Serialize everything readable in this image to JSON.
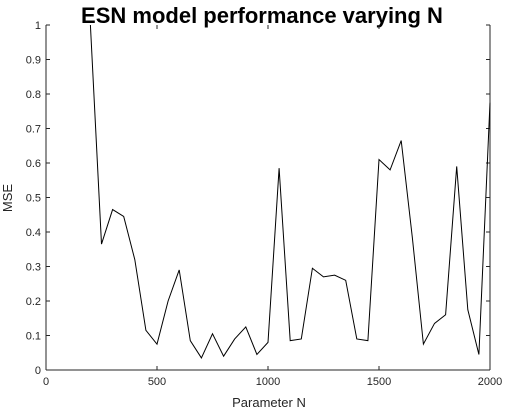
{
  "chart_data": {
    "type": "line",
    "title": "ESN model performance varying  N",
    "xlabel": "Parameter  N",
    "ylabel": "MSE",
    "xlim": [
      0,
      2000
    ],
    "ylim": [
      0,
      1
    ],
    "xticks": [
      0,
      500,
      1000,
      1500,
      2000
    ],
    "xtick_labels": [
      "0",
      "500",
      "1000",
      "1500",
      "2000"
    ],
    "yticks": [
      0,
      0.1,
      0.2,
      0.3,
      0.4,
      0.5,
      0.6,
      0.7,
      0.8,
      0.9,
      1
    ],
    "ytick_labels": [
      "0",
      "0.1",
      "0.2",
      "0.3",
      "0.4",
      "0.5",
      "0.6",
      "0.7",
      "0.8",
      "0.9",
      "1"
    ],
    "grid": false,
    "line_color": "#000000",
    "series": [
      {
        "x": [
          200,
          250,
          300,
          350,
          400,
          450,
          500,
          550,
          600,
          650,
          700,
          750,
          800,
          850,
          900,
          950,
          1000,
          1050,
          1100,
          1150,
          1200,
          1250,
          1300,
          1350,
          1400,
          1450,
          1500,
          1550,
          1600,
          1650,
          1700,
          1750,
          1800,
          1850,
          1900,
          1950,
          2000
        ],
        "values": [
          1.0,
          0.365,
          0.465,
          0.445,
          0.32,
          0.115,
          0.075,
          0.2,
          0.29,
          0.085,
          0.035,
          0.105,
          0.04,
          0.09,
          0.125,
          0.045,
          0.08,
          0.585,
          0.085,
          0.09,
          0.295,
          0.27,
          0.275,
          0.26,
          0.09,
          0.085,
          0.61,
          0.58,
          0.665,
          0.385,
          0.075,
          0.135,
          0.16,
          0.59,
          0.175,
          0.045,
          0.775
        ]
      }
    ]
  }
}
